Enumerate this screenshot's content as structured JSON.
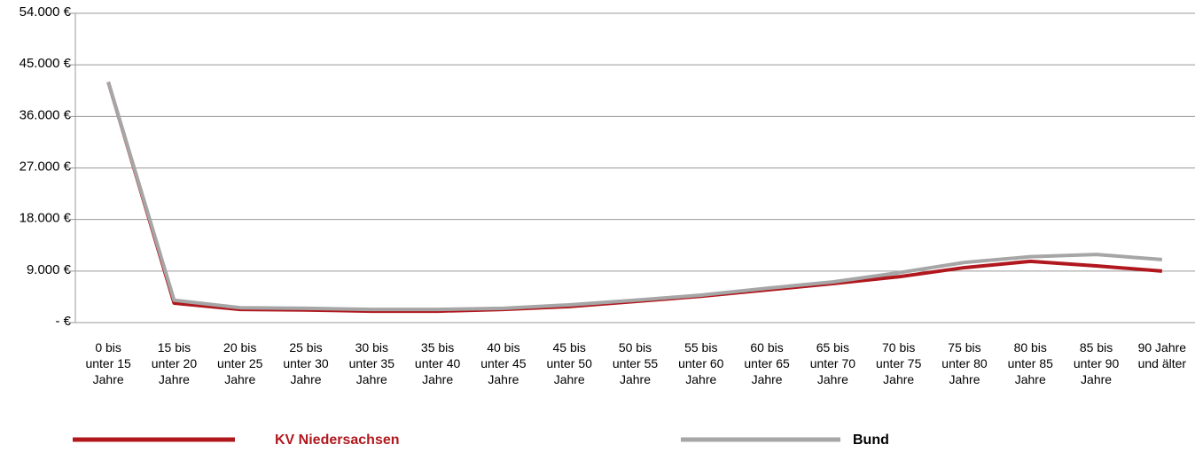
{
  "chart_data": {
    "type": "line",
    "categories": [
      "0 bis unter 15 Jahre",
      "15 bis unter 20 Jahre",
      "20 bis unter 25 Jahre",
      "25 bis unter 30 Jahre",
      "30 bis unter 35 Jahre",
      "35 bis unter 40 Jahre",
      "40 bis unter 45 Jahre",
      "45 bis unter 50 Jahre",
      "50 bis unter 55 Jahre",
      "55 bis unter 60 Jahre",
      "60 bis unter 65 Jahre",
      "65 bis unter 70 Jahre",
      "70 bis unter 75 Jahre",
      "75 bis unter 80 Jahre",
      "80 bis unter 85 Jahre",
      "85 bis unter 90 Jahre",
      "90 Jahre und älter"
    ],
    "series": [
      {
        "name": "KV Niedersachsen",
        "color": "#b0181e",
        "values": [
          42000,
          3400,
          2300,
          2200,
          2000,
          2000,
          2300,
          2800,
          3700,
          4600,
          5700,
          6800,
          8000,
          9600,
          10700,
          9900,
          9000
        ]
      },
      {
        "name": "Bund",
        "color": "#a6a6a6",
        "values": [
          42000,
          3900,
          2600,
          2500,
          2300,
          2300,
          2500,
          3100,
          3900,
          4800,
          6000,
          7100,
          8700,
          10500,
          11500,
          11900,
          11000
        ]
      }
    ],
    "ylim": [
      0,
      54000
    ],
    "yticks": [
      {
        "value": 0,
        "label": "- €"
      },
      {
        "value": 9000,
        "label": "9.000 €"
      },
      {
        "value": 18000,
        "label": "18.000 €"
      },
      {
        "value": 27000,
        "label": "27.000 €"
      },
      {
        "value": 36000,
        "label": "36.000 €"
      },
      {
        "value": 45000,
        "label": "45.000 €"
      },
      {
        "value": 54000,
        "label": "54.000 €"
      }
    ],
    "grid": true
  }
}
